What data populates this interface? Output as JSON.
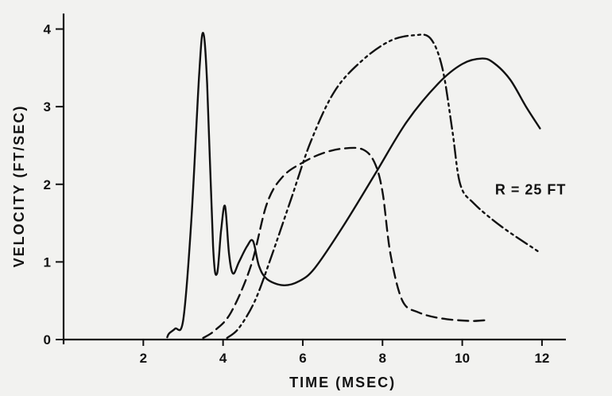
{
  "chart_data": {
    "type": "line",
    "title": "",
    "xlabel": "TIME (MSEC)",
    "ylabel": "VELOCITY (FT/SEC)",
    "xlim": [
      0,
      12.6
    ],
    "ylim": [
      0,
      4.2
    ],
    "x_ticks": [
      2,
      4,
      6,
      8,
      10,
      12
    ],
    "y_ticks": [
      0,
      1,
      2,
      3,
      4
    ],
    "x_tick_labels": [
      "2",
      "4",
      "6",
      "8",
      "10",
      "12"
    ],
    "y_tick_labels": [
      "0",
      "1",
      "2",
      "3",
      "4"
    ],
    "grid": false,
    "legend": "none",
    "annotations": [
      {
        "text": "R = 25 FT",
        "x": 11.7,
        "y": 1.95
      }
    ],
    "series": [
      {
        "style": "solid",
        "points": [
          [
            2.6,
            0.03
          ],
          [
            2.65,
            0.08
          ],
          [
            2.8,
            0.14
          ],
          [
            3.0,
            0.25
          ],
          [
            3.2,
            1.5
          ],
          [
            3.4,
            3.4
          ],
          [
            3.5,
            3.95
          ],
          [
            3.6,
            3.3
          ],
          [
            3.75,
            1.2
          ],
          [
            3.85,
            0.85
          ],
          [
            3.95,
            1.4
          ],
          [
            4.05,
            1.72
          ],
          [
            4.15,
            1.1
          ],
          [
            4.25,
            0.85
          ],
          [
            4.4,
            1.0
          ],
          [
            4.6,
            1.2
          ],
          [
            4.75,
            1.27
          ],
          [
            4.9,
            0.95
          ],
          [
            5.1,
            0.78
          ],
          [
            5.5,
            0.7
          ],
          [
            5.9,
            0.75
          ],
          [
            6.3,
            0.92
          ],
          [
            7.0,
            1.45
          ],
          [
            7.8,
            2.12
          ],
          [
            8.6,
            2.8
          ],
          [
            9.4,
            3.3
          ],
          [
            10.0,
            3.55
          ],
          [
            10.5,
            3.62
          ],
          [
            10.8,
            3.56
          ],
          [
            11.2,
            3.35
          ],
          [
            11.6,
            3.0
          ],
          [
            11.95,
            2.72
          ]
        ]
      },
      {
        "style": "dashed",
        "points": [
          [
            3.5,
            0.02
          ],
          [
            3.8,
            0.12
          ],
          [
            4.2,
            0.35
          ],
          [
            4.7,
            0.95
          ],
          [
            5.1,
            1.75
          ],
          [
            5.5,
            2.1
          ],
          [
            6.0,
            2.28
          ],
          [
            6.5,
            2.4
          ],
          [
            7.0,
            2.46
          ],
          [
            7.5,
            2.45
          ],
          [
            7.8,
            2.28
          ],
          [
            8.0,
            1.9
          ],
          [
            8.2,
            1.1
          ],
          [
            8.5,
            0.5
          ],
          [
            8.9,
            0.35
          ],
          [
            9.5,
            0.27
          ],
          [
            10.2,
            0.24
          ],
          [
            10.6,
            0.25
          ]
        ]
      },
      {
        "style": "dash-dot-dot",
        "points": [
          [
            4.1,
            0.02
          ],
          [
            4.4,
            0.15
          ],
          [
            4.8,
            0.5
          ],
          [
            5.2,
            1.05
          ],
          [
            5.7,
            1.8
          ],
          [
            6.2,
            2.55
          ],
          [
            6.8,
            3.2
          ],
          [
            7.5,
            3.6
          ],
          [
            8.2,
            3.85
          ],
          [
            8.8,
            3.92
          ],
          [
            9.2,
            3.88
          ],
          [
            9.5,
            3.5
          ],
          [
            9.75,
            2.7
          ],
          [
            9.95,
            2.0
          ],
          [
            10.3,
            1.75
          ],
          [
            11.0,
            1.45
          ],
          [
            11.95,
            1.12
          ]
        ]
      }
    ]
  }
}
